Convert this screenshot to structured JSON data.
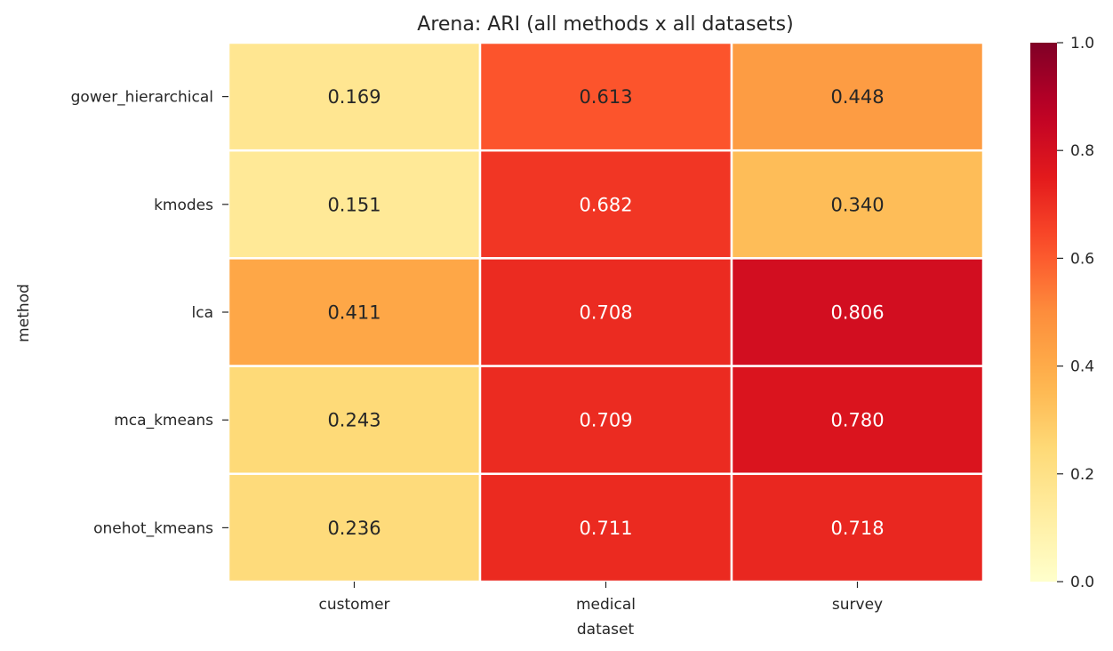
{
  "chart_data": {
    "type": "heatmap",
    "title": "Arena: ARI (all methods x all datasets)",
    "xlabel": "dataset",
    "ylabel": "method",
    "x_categories": [
      "customer",
      "medical",
      "survey"
    ],
    "y_categories": [
      "gower_hierarchical",
      "kmodes",
      "lca",
      "mca_kmeans",
      "onehot_kmeans"
    ],
    "values": [
      [
        0.169,
        0.613,
        0.448
      ],
      [
        0.151,
        0.682,
        0.34
      ],
      [
        0.411,
        0.708,
        0.806
      ],
      [
        0.243,
        0.709,
        0.78
      ],
      [
        0.236,
        0.711,
        0.718
      ]
    ],
    "value_format": "0.000",
    "colormap": "YlOrRd",
    "vmin": 0.0,
    "vmax": 1.0,
    "colorbar_ticks": [
      "0.0",
      "0.2",
      "0.4",
      "0.6",
      "0.8",
      "1.0"
    ],
    "colorbar_tick_values": [
      0.0,
      0.2,
      0.4,
      0.6,
      0.8,
      1.0
    ],
    "grid_line_color": "#ffffff"
  }
}
